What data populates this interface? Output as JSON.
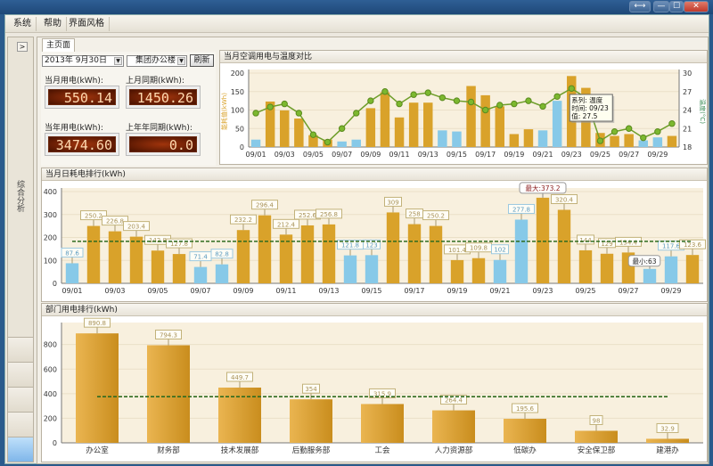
{
  "window": {
    "controls": [
      "⟷",
      "—",
      "☐",
      "✕"
    ]
  },
  "menu": [
    "系统",
    "帮助",
    "界面风格"
  ],
  "sidebar": {
    "toggle": ">",
    "section": "综合分析"
  },
  "tab": "主页面",
  "filters": {
    "date": "2013年  9月30日",
    "building": "集团办公楼",
    "refresh": "刷新"
  },
  "meters": [
    {
      "label": "当月用电(kWh):",
      "value": "550.14"
    },
    {
      "label": "上月同期(kWh):",
      "value": "1450.26"
    },
    {
      "label": "当年用电(kWh):",
      "value": "3474.60"
    },
    {
      "label": "上年年同期(kWh):",
      "value": "0.0"
    }
  ],
  "colors": {
    "workday": "#d9a22a",
    "weekend": "#87c9e8",
    "temperature": "#6f9e2a",
    "average": "#2f6b1f"
  },
  "chart_data": [
    {
      "type": "bar+line",
      "title": "当月空调用电与温度对比",
      "ylabel": "能耗值(kWh)",
      "y2label": "温度(°C)",
      "ylim": [
        0,
        200
      ],
      "y2lim": [
        18,
        30
      ],
      "yticks": [
        0,
        50,
        100,
        150,
        200
      ],
      "y2ticks": [
        18,
        21,
        24,
        27,
        30
      ],
      "categories": [
        "09/01",
        "09/02",
        "09/03",
        "09/04",
        "09/05",
        "09/06",
        "09/07",
        "09/08",
        "09/09",
        "09/10",
        "09/11",
        "09/12",
        "09/13",
        "09/14",
        "09/15",
        "09/16",
        "09/17",
        "09/18",
        "09/19",
        "09/20",
        "09/21",
        "09/22",
        "09/23",
        "09/24",
        "09/25",
        "09/26",
        "09/27",
        "09/28",
        "09/29",
        "09/30"
      ],
      "values": [
        20,
        123,
        99,
        77,
        32,
        20,
        15,
        20,
        105,
        148,
        80,
        120,
        120,
        45,
        42,
        165,
        140,
        110,
        35,
        48,
        45,
        125,
        192,
        160,
        38,
        30,
        35,
        18,
        26,
        30
      ],
      "temperature": [
        23.5,
        24.5,
        25,
        23.5,
        20,
        18.8,
        21,
        23.5,
        25.5,
        27,
        25,
        26.5,
        26.8,
        26,
        25.5,
        25.3,
        24,
        24.8,
        25,
        25.5,
        24.6,
        26.2,
        27.5,
        26,
        19,
        20.5,
        21,
        19.5,
        20.5,
        21.8
      ],
      "weekend": [
        1,
        7,
        8,
        14,
        15,
        21,
        22,
        28,
        29
      ],
      "tooltip": {
        "series": "系列: 温度",
        "time": "时间: 09/23",
        "value": "值: 27.5"
      }
    },
    {
      "type": "bar",
      "title": "当月日耗电排行(kWh)",
      "ylim": [
        0,
        400
      ],
      "yticks": [
        0,
        100,
        200,
        300,
        400
      ],
      "categories": [
        "09/01",
        "09/02",
        "09/03",
        "09/04",
        "09/05",
        "09/06",
        "09/07",
        "09/08",
        "09/09",
        "09/10",
        "09/11",
        "09/12",
        "09/13",
        "09/14",
        "09/15",
        "09/16",
        "09/17",
        "09/18",
        "09/19",
        "09/20",
        "09/21",
        "09/22",
        "09/23",
        "09/24",
        "09/25",
        "09/26",
        "09/27",
        "09/28",
        "09/29",
        "09/30"
      ],
      "values": [
        87.6,
        250.2,
        226.8,
        203.4,
        142.8,
        127.8,
        71.4,
        82.8,
        232.2,
        296.4,
        212.4,
        252.6,
        256.8,
        121.8,
        123,
        309,
        258,
        250.2,
        101.4,
        109.8,
        102,
        277.8,
        373.2,
        320.4,
        144,
        129,
        134.4,
        63,
        117.6,
        123.6
      ],
      "weekend": [
        1,
        7,
        8,
        14,
        15,
        21,
        22,
        28,
        29
      ],
      "average": 183,
      "max_label": "最大:373.2",
      "min_label": "最小:63"
    },
    {
      "type": "bar",
      "title": "部门用电排行(kWh)",
      "ylim": [
        0,
        950
      ],
      "yticks": [
        0,
        200,
        400,
        600,
        800
      ],
      "categories": [
        "办公室",
        "财务部",
        "技术发展部",
        "后勤服务部",
        "工会",
        "人力资源部",
        "低碳办",
        "安全保卫部",
        "建港办"
      ],
      "values": [
        890.8,
        794.3,
        449.7,
        354,
        315.9,
        264.4,
        195.6,
        98,
        32.9
      ],
      "average": 376
    }
  ]
}
